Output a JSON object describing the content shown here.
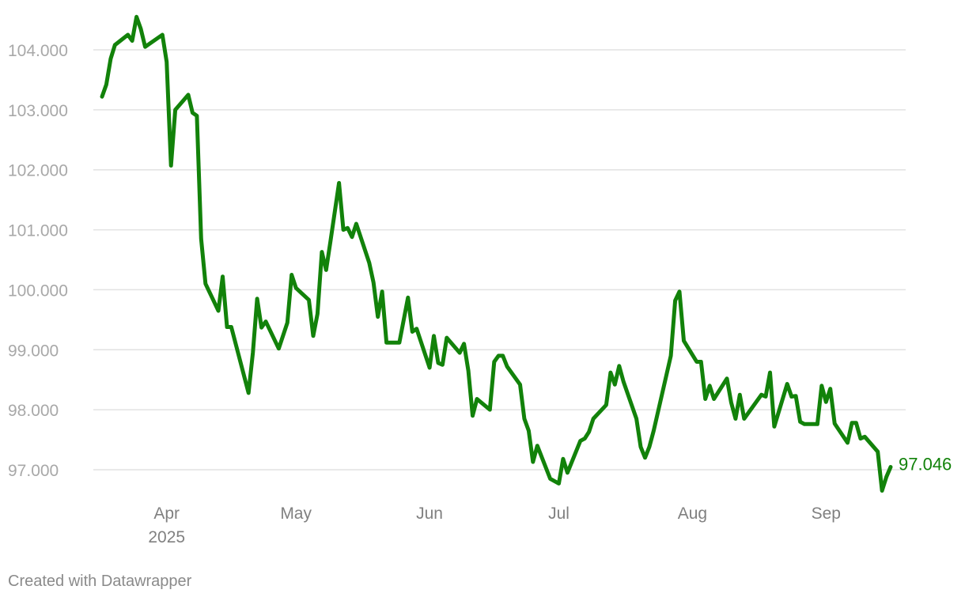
{
  "chart_data": {
    "type": "line",
    "title": "",
    "xlabel": "",
    "ylabel": "",
    "x_range": [
      "2025-03-17",
      "2025-09-21"
    ],
    "ylim": [
      96.5,
      104.75
    ],
    "grid": "horizontal",
    "line_color": "#12820a",
    "y_ticks": [
      {
        "value": 97,
        "label": "97.000"
      },
      {
        "value": 98,
        "label": "98.000"
      },
      {
        "value": 99,
        "label": "99.000"
      },
      {
        "value": 100,
        "label": "100.000"
      },
      {
        "value": 101,
        "label": "101.000"
      },
      {
        "value": 102,
        "label": "102.000"
      },
      {
        "value": 103,
        "label": "103.000"
      },
      {
        "value": 104,
        "label": "104.000"
      }
    ],
    "x_ticks": [
      {
        "date": "2025-04-01",
        "label": "Apr",
        "sublabel": "2025"
      },
      {
        "date": "2025-05-01",
        "label": "May",
        "sublabel": ""
      },
      {
        "date": "2025-06-01",
        "label": "Jun",
        "sublabel": ""
      },
      {
        "date": "2025-07-01",
        "label": "Jul",
        "sublabel": ""
      },
      {
        "date": "2025-08-01",
        "label": "Aug",
        "sublabel": ""
      },
      {
        "date": "2025-09-01",
        "label": "Sep",
        "sublabel": ""
      }
    ],
    "end_label": "97.046",
    "series": [
      {
        "points": [
          [
            "2025-03-17",
            103.22
          ],
          [
            "2025-03-18",
            103.42
          ],
          [
            "2025-03-19",
            103.85
          ],
          [
            "2025-03-20",
            104.08
          ],
          [
            "2025-03-23",
            104.25
          ],
          [
            "2025-03-24",
            104.15
          ],
          [
            "2025-03-25",
            104.55
          ],
          [
            "2025-03-26",
            104.35
          ],
          [
            "2025-03-27",
            104.05
          ],
          [
            "2025-03-31",
            104.25
          ],
          [
            "2025-04-01",
            103.8
          ],
          [
            "2025-04-02",
            102.07
          ],
          [
            "2025-04-03",
            103.0
          ],
          [
            "2025-04-06",
            103.25
          ],
          [
            "2025-04-07",
            102.95
          ],
          [
            "2025-04-08",
            102.9
          ],
          [
            "2025-04-09",
            100.85
          ],
          [
            "2025-04-10",
            100.1
          ],
          [
            "2025-04-13",
            99.65
          ],
          [
            "2025-04-14",
            100.22
          ],
          [
            "2025-04-15",
            99.38
          ],
          [
            "2025-04-16",
            99.38
          ],
          [
            "2025-04-20",
            98.28
          ],
          [
            "2025-04-21",
            98.95
          ],
          [
            "2025-04-22",
            99.85
          ],
          [
            "2025-04-23",
            99.37
          ],
          [
            "2025-04-24",
            99.47
          ],
          [
            "2025-04-27",
            99.02
          ],
          [
            "2025-04-29",
            99.45
          ],
          [
            "2025-04-30",
            100.25
          ],
          [
            "2025-05-01",
            100.03
          ],
          [
            "2025-05-04",
            99.83
          ],
          [
            "2025-05-05",
            99.23
          ],
          [
            "2025-05-06",
            99.6
          ],
          [
            "2025-05-07",
            100.63
          ],
          [
            "2025-05-08",
            100.33
          ],
          [
            "2025-05-09",
            100.8
          ],
          [
            "2025-05-11",
            101.78
          ],
          [
            "2025-05-12",
            101.0
          ],
          [
            "2025-05-13",
            101.03
          ],
          [
            "2025-05-14",
            100.88
          ],
          [
            "2025-05-15",
            101.1
          ],
          [
            "2025-05-18",
            100.45
          ],
          [
            "2025-05-19",
            100.12
          ],
          [
            "2025-05-20",
            99.55
          ],
          [
            "2025-05-21",
            99.97
          ],
          [
            "2025-05-22",
            99.12
          ],
          [
            "2025-05-25",
            99.12
          ],
          [
            "2025-05-27",
            99.87
          ],
          [
            "2025-05-28",
            99.3
          ],
          [
            "2025-05-29",
            99.35
          ],
          [
            "2025-06-01",
            98.7
          ],
          [
            "2025-06-02",
            99.23
          ],
          [
            "2025-06-03",
            98.78
          ],
          [
            "2025-06-04",
            98.75
          ],
          [
            "2025-06-05",
            99.2
          ],
          [
            "2025-06-08",
            98.95
          ],
          [
            "2025-06-09",
            99.1
          ],
          [
            "2025-06-10",
            98.65
          ],
          [
            "2025-06-11",
            97.9
          ],
          [
            "2025-06-12",
            98.18
          ],
          [
            "2025-06-15",
            98.0
          ],
          [
            "2025-06-16",
            98.8
          ],
          [
            "2025-06-17",
            98.9
          ],
          [
            "2025-06-18",
            98.9
          ],
          [
            "2025-06-19",
            98.72
          ],
          [
            "2025-06-22",
            98.42
          ],
          [
            "2025-06-23",
            97.85
          ],
          [
            "2025-06-24",
            97.65
          ],
          [
            "2025-06-25",
            97.13
          ],
          [
            "2025-06-26",
            97.4
          ],
          [
            "2025-06-29",
            96.85
          ],
          [
            "2025-07-01",
            96.77
          ],
          [
            "2025-07-02",
            97.18
          ],
          [
            "2025-07-03",
            96.95
          ],
          [
            "2025-07-06",
            97.48
          ],
          [
            "2025-07-07",
            97.52
          ],
          [
            "2025-07-08",
            97.63
          ],
          [
            "2025-07-09",
            97.85
          ],
          [
            "2025-07-12",
            98.08
          ],
          [
            "2025-07-13",
            98.62
          ],
          [
            "2025-07-14",
            98.42
          ],
          [
            "2025-07-15",
            98.73
          ],
          [
            "2025-07-16",
            98.47
          ],
          [
            "2025-07-19",
            97.85
          ],
          [
            "2025-07-20",
            97.38
          ],
          [
            "2025-07-21",
            97.2
          ],
          [
            "2025-07-22",
            97.38
          ],
          [
            "2025-07-23",
            97.65
          ],
          [
            "2025-07-27",
            98.9
          ],
          [
            "2025-07-28",
            99.82
          ],
          [
            "2025-07-29",
            99.97
          ],
          [
            "2025-07-30",
            99.15
          ],
          [
            "2025-08-02",
            98.8
          ],
          [
            "2025-08-03",
            98.8
          ],
          [
            "2025-08-04",
            98.18
          ],
          [
            "2025-08-05",
            98.4
          ],
          [
            "2025-08-06",
            98.18
          ],
          [
            "2025-08-09",
            98.52
          ],
          [
            "2025-08-10",
            98.12
          ],
          [
            "2025-08-11",
            97.85
          ],
          [
            "2025-08-12",
            98.25
          ],
          [
            "2025-08-13",
            97.85
          ],
          [
            "2025-08-17",
            98.25
          ],
          [
            "2025-08-18",
            98.22
          ],
          [
            "2025-08-19",
            98.62
          ],
          [
            "2025-08-20",
            97.72
          ],
          [
            "2025-08-23",
            98.43
          ],
          [
            "2025-08-24",
            98.22
          ],
          [
            "2025-08-25",
            98.23
          ],
          [
            "2025-08-26",
            97.8
          ],
          [
            "2025-08-27",
            97.76
          ],
          [
            "2025-08-30",
            97.76
          ],
          [
            "2025-08-31",
            98.4
          ],
          [
            "2025-09-01",
            98.13
          ],
          [
            "2025-09-02",
            98.35
          ],
          [
            "2025-09-03",
            97.77
          ],
          [
            "2025-09-06",
            97.45
          ],
          [
            "2025-09-07",
            97.78
          ],
          [
            "2025-09-08",
            97.78
          ],
          [
            "2025-09-09",
            97.52
          ],
          [
            "2025-09-10",
            97.55
          ],
          [
            "2025-09-13",
            97.3
          ],
          [
            "2025-09-14",
            96.65
          ],
          [
            "2025-09-15",
            96.88
          ],
          [
            "2025-09-16",
            97.046
          ]
        ]
      }
    ]
  },
  "footer": {
    "credit": "Created with Datawrapper"
  }
}
